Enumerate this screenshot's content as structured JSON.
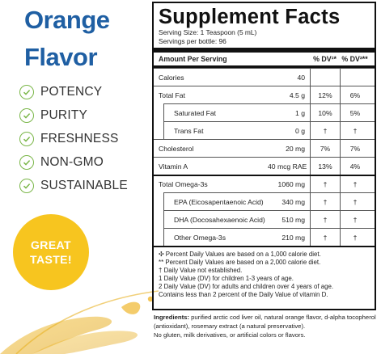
{
  "flavor": {
    "line1": "Orange",
    "line2": "Flavor"
  },
  "claims": [
    "POTENCY",
    "PURITY",
    "FRESHNESS",
    "NON-GMO",
    "SUSTAINABLE"
  ],
  "badge": {
    "line1": "GREAT",
    "line2": "TASTE!"
  },
  "colors": {
    "title_blue": "#1f5fa3",
    "check_green": "#7ab648",
    "badge_yellow": "#f7c51f"
  },
  "label": {
    "title": "Supplement Facts",
    "serving_size": "Serving Size: 1 Teaspoon (5 mL)",
    "servings_per": "Servings per bottle: 96",
    "header": {
      "name": "Amount Per Serving",
      "dv1": "% DV¹*",
      "dv2": "% DV²**"
    },
    "rows": [
      {
        "name": "Calories",
        "amount": "40",
        "dv1": "",
        "dv2": "",
        "indent": false,
        "group_start": false
      },
      {
        "name": "Total Fat",
        "amount": "4.5 g",
        "dv1": "12%",
        "dv2": "6%",
        "indent": false,
        "group_start": false
      },
      {
        "name": "Saturated Fat",
        "amount": "1 g",
        "dv1": "10%",
        "dv2": "5%",
        "indent": true,
        "group_start": false
      },
      {
        "name": "Trans Fat",
        "amount": "0 g",
        "dv1": "†",
        "dv2": "†",
        "indent": true,
        "group_start": false
      },
      {
        "name": "Cholesterol",
        "amount": "20 mg",
        "dv1": "7%",
        "dv2": "7%",
        "indent": false,
        "group_start": false
      },
      {
        "name": "Vitamin A",
        "amount": "40 mcg RAE",
        "dv1": "13%",
        "dv2": "4%",
        "indent": false,
        "group_start": false
      },
      {
        "name": "Total Omega-3s",
        "amount": "1060 mg",
        "dv1": "†",
        "dv2": "†",
        "indent": false,
        "group_start": true
      },
      {
        "name": "EPA (Eicosapentaenoic Acid)",
        "amount": "340 mg",
        "dv1": "†",
        "dv2": "†",
        "indent": true,
        "group_start": false
      },
      {
        "name": "DHA (Docosahexaenoic Acid)",
        "amount": "510 mg",
        "dv1": "†",
        "dv2": "†",
        "indent": true,
        "group_start": false
      },
      {
        "name": "Other Omega-3s",
        "amount": "210 mg",
        "dv1": "†",
        "dv2": "†",
        "indent": true,
        "group_start": false
      }
    ],
    "footnotes": [
      "✣ Percent Daily Values are based on a 1,000 calorie diet.",
      "** Percent Daily Values are based on a 2,000 calorie diet.",
      "†  Daily Value not established.",
      "1  Daily Value (DV) for children 1-3 years of age.",
      "2  Daily Value (DV) for adults and children over 4 years of age.",
      "Contains less than 2 percent of the Daily Value of vitamin D."
    ]
  },
  "ingredients": {
    "label": "Ingredients:",
    "text": " purified arctic cod liver oil, natural orange flavor, d-alpha tocopherol (antioxidant), rosemary extract (a natural preservative).",
    "note": "No gluten, milk derivatives, or artificial colors or flavors."
  }
}
